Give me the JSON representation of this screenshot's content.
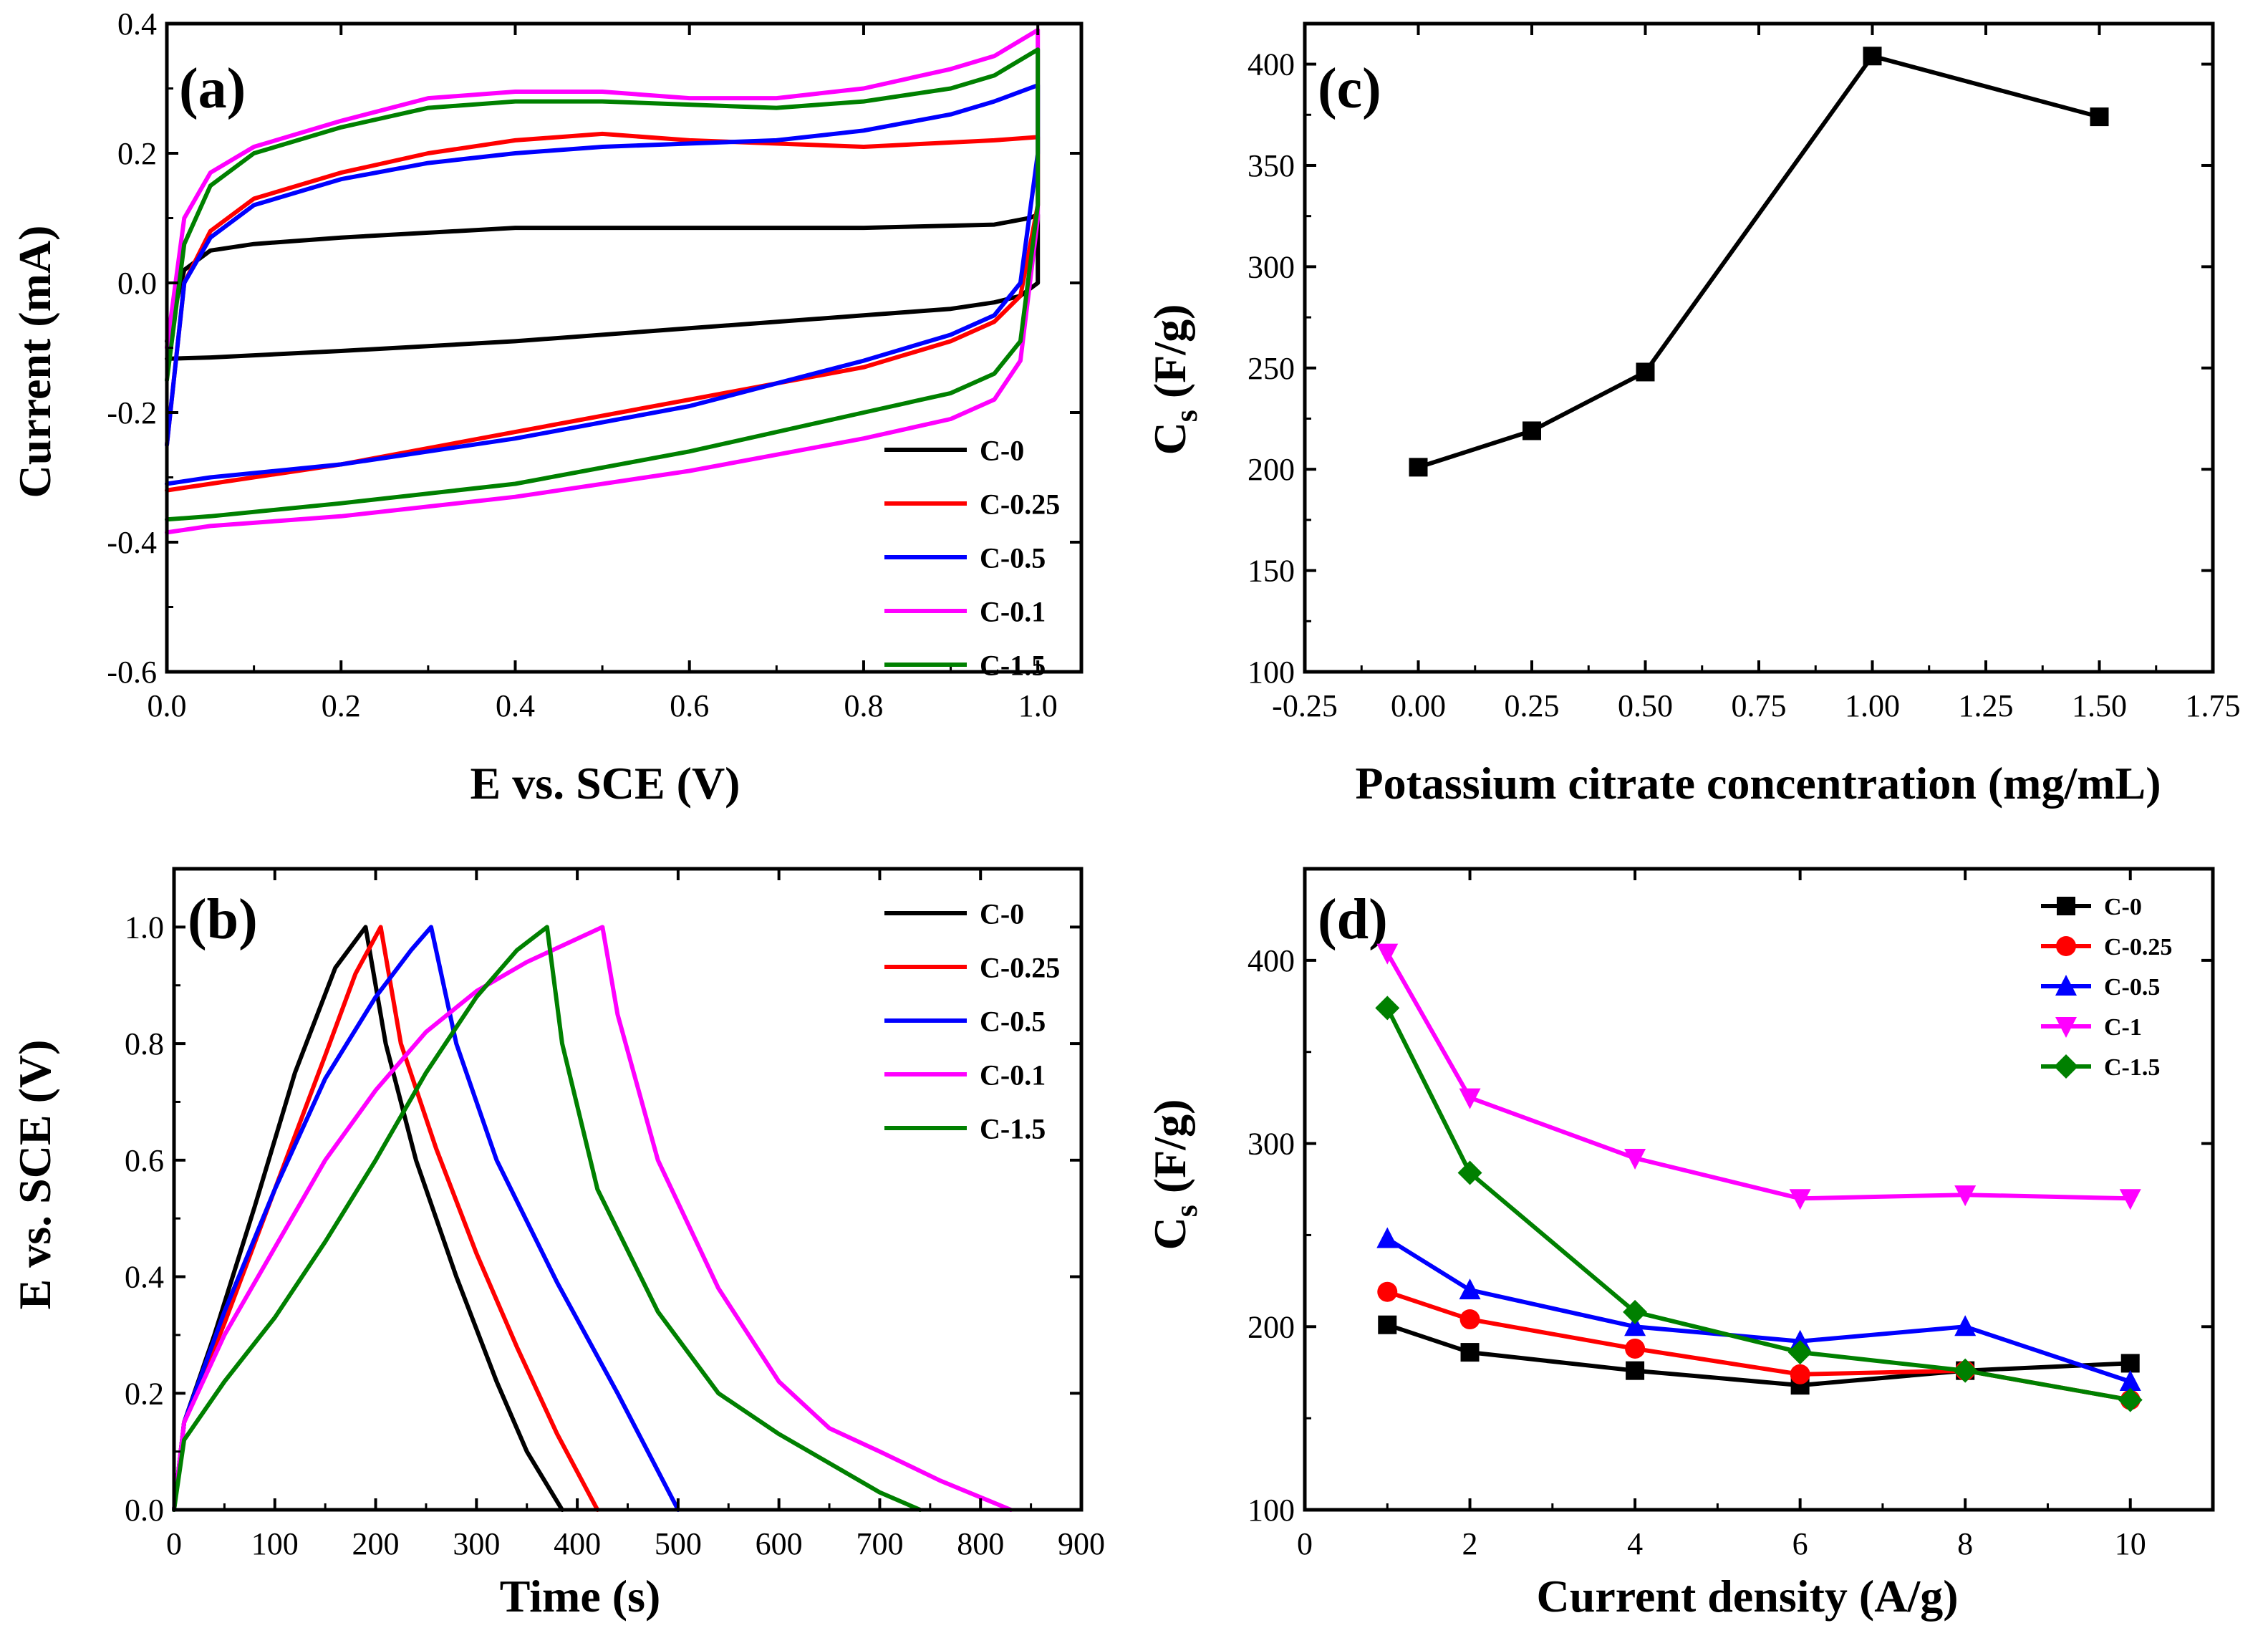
{
  "chart_data": [
    {
      "panel": "(a)",
      "type": "line",
      "title": "",
      "xlabel": "E vs. SCE (V)",
      "ylabel": "Current (mA)",
      "xlim": [
        0.0,
        1.05
      ],
      "ylim": [
        -0.6,
        0.4
      ],
      "xticks": [
        "0.0",
        "0.2",
        "0.4",
        "0.6",
        "0.8",
        "1.0"
      ],
      "yticks": [
        "-0.6",
        "-0.4",
        "-0.2",
        "0.0",
        "0.2",
        "0.4"
      ],
      "legend_position": "bottom-right",
      "series": [
        {
          "name": "C-0",
          "color": "#000000",
          "x": [
            0.0,
            0.02,
            0.05,
            0.1,
            0.2,
            0.4,
            0.6,
            0.8,
            0.95,
            0.99,
            1.0,
            1.0,
            0.98,
            0.95,
            0.9,
            0.8,
            0.6,
            0.4,
            0.2,
            0.05,
            0.0
          ],
          "y": [
            -0.09,
            0.02,
            0.05,
            0.06,
            0.07,
            0.085,
            0.085,
            0.085,
            0.09,
            0.1,
            0.105,
            0.0,
            -0.02,
            -0.03,
            -0.04,
            -0.05,
            -0.07,
            -0.09,
            -0.105,
            -0.115,
            -0.117
          ]
        },
        {
          "name": "C-0.25",
          "color": "#ff0000",
          "x": [
            0.0,
            0.02,
            0.05,
            0.1,
            0.2,
            0.3,
            0.4,
            0.5,
            0.6,
            0.8,
            0.95,
            1.0,
            1.0,
            0.98,
            0.95,
            0.9,
            0.8,
            0.6,
            0.4,
            0.2,
            0.05,
            0.0
          ],
          "y": [
            -0.25,
            0.0,
            0.08,
            0.13,
            0.17,
            0.2,
            0.22,
            0.23,
            0.22,
            0.21,
            0.22,
            0.225,
            0.12,
            -0.02,
            -0.06,
            -0.09,
            -0.13,
            -0.18,
            -0.23,
            -0.28,
            -0.31,
            -0.32
          ]
        },
        {
          "name": "C-0.5",
          "color": "#0000ff",
          "x": [
            0.0,
            0.02,
            0.05,
            0.1,
            0.2,
            0.3,
            0.4,
            0.5,
            0.6,
            0.7,
            0.8,
            0.9,
            0.95,
            1.0,
            1.0,
            0.98,
            0.95,
            0.9,
            0.8,
            0.6,
            0.4,
            0.2,
            0.05,
            0.0
          ],
          "y": [
            -0.25,
            0.0,
            0.07,
            0.12,
            0.16,
            0.185,
            0.2,
            0.21,
            0.215,
            0.22,
            0.235,
            0.26,
            0.28,
            0.305,
            0.2,
            0.0,
            -0.05,
            -0.08,
            -0.12,
            -0.19,
            -0.24,
            -0.28,
            -0.3,
            -0.31
          ]
        },
        {
          "name": "C-0.1",
          "color": "#ff00ff",
          "x": [
            0.0,
            0.02,
            0.05,
            0.1,
            0.2,
            0.3,
            0.4,
            0.5,
            0.6,
            0.7,
            0.8,
            0.9,
            0.95,
            1.0,
            1.0,
            0.98,
            0.95,
            0.9,
            0.8,
            0.6,
            0.4,
            0.2,
            0.05,
            0.0
          ],
          "y": [
            -0.1,
            0.1,
            0.17,
            0.21,
            0.25,
            0.285,
            0.295,
            0.295,
            0.285,
            0.285,
            0.3,
            0.33,
            0.35,
            0.39,
            0.1,
            -0.12,
            -0.18,
            -0.21,
            -0.24,
            -0.29,
            -0.33,
            -0.36,
            -0.375,
            -0.385
          ]
        },
        {
          "name": "C-1.5",
          "color": "#008000",
          "x": [
            0.0,
            0.02,
            0.05,
            0.1,
            0.2,
            0.3,
            0.4,
            0.5,
            0.6,
            0.7,
            0.8,
            0.9,
            0.95,
            1.0,
            1.0,
            0.98,
            0.95,
            0.9,
            0.8,
            0.6,
            0.4,
            0.2,
            0.05,
            0.0
          ],
          "y": [
            -0.15,
            0.06,
            0.15,
            0.2,
            0.24,
            0.27,
            0.28,
            0.28,
            0.275,
            0.27,
            0.28,
            0.3,
            0.32,
            0.36,
            0.12,
            -0.09,
            -0.14,
            -0.17,
            -0.2,
            -0.26,
            -0.31,
            -0.34,
            -0.36,
            -0.365
          ]
        }
      ]
    },
    {
      "panel": "(b)",
      "type": "line",
      "title": "",
      "xlabel": "Time (s)",
      "ylabel": "E vs. SCE (V)",
      "xlim": [
        0,
        900
      ],
      "ylim": [
        0.0,
        1.1
      ],
      "xticks": [
        "0",
        "100",
        "200",
        "300",
        "400",
        "500",
        "600",
        "700",
        "800",
        "900"
      ],
      "yticks": [
        "0.0",
        "0.2",
        "0.4",
        "0.6",
        "0.8",
        "1.0"
      ],
      "legend_position": "top-right",
      "series": [
        {
          "name": "C-0",
          "color": "#000000",
          "x": [
            0,
            10,
            40,
            80,
            120,
            160,
            190,
            210,
            240,
            280,
            320,
            350,
            385
          ],
          "y": [
            0.0,
            0.15,
            0.3,
            0.52,
            0.75,
            0.93,
            1.0,
            0.8,
            0.6,
            0.4,
            0.22,
            0.1,
            0.0
          ]
        },
        {
          "name": "C-0.25",
          "color": "#ff0000",
          "x": [
            0,
            10,
            50,
            100,
            150,
            180,
            205,
            225,
            260,
            300,
            340,
            380,
            420
          ],
          "y": [
            0.0,
            0.15,
            0.32,
            0.55,
            0.78,
            0.92,
            1.0,
            0.8,
            0.62,
            0.44,
            0.28,
            0.13,
            0.0
          ]
        },
        {
          "name": "C-0.5",
          "color": "#0000ff",
          "x": [
            0,
            10,
            50,
            100,
            150,
            200,
            235,
            255,
            280,
            320,
            380,
            440,
            500
          ],
          "y": [
            0.0,
            0.15,
            0.34,
            0.55,
            0.74,
            0.88,
            0.96,
            1.0,
            0.8,
            0.6,
            0.39,
            0.2,
            0.0
          ]
        },
        {
          "name": "C-0.1",
          "color": "#ff00ff",
          "x": [
            0,
            10,
            50,
            100,
            150,
            200,
            250,
            300,
            350,
            400,
            425,
            440,
            480,
            540,
            600,
            650,
            700,
            760,
            830
          ],
          "y": [
            0.0,
            0.15,
            0.3,
            0.45,
            0.6,
            0.72,
            0.82,
            0.89,
            0.94,
            0.98,
            1.0,
            0.85,
            0.6,
            0.38,
            0.22,
            0.14,
            0.1,
            0.05,
            0.0
          ]
        },
        {
          "name": "C-1.5",
          "color": "#008000",
          "x": [
            0,
            10,
            50,
            100,
            150,
            200,
            250,
            300,
            340,
            370,
            385,
            420,
            480,
            540,
            600,
            660,
            700,
            740
          ],
          "y": [
            0.0,
            0.12,
            0.22,
            0.33,
            0.46,
            0.6,
            0.75,
            0.88,
            0.96,
            1.0,
            0.8,
            0.55,
            0.34,
            0.2,
            0.13,
            0.07,
            0.03,
            0.0
          ]
        }
      ]
    },
    {
      "panel": "(c)",
      "type": "line",
      "title": "",
      "xlabel": "Potassium citrate concentration (mg/mL)",
      "ylabel_main": "C",
      "ylabel_sub": "s",
      "ylabel_rest": " (F/g)",
      "xlim": [
        -0.25,
        1.75
      ],
      "ylim": [
        100,
        420
      ],
      "xticks": [
        "-0.25",
        "0.00",
        "0.25",
        "0.50",
        "0.75",
        "1.00",
        "1.25",
        "1.50",
        "1.75"
      ],
      "yticks": [
        "100",
        "150",
        "200",
        "250",
        "300",
        "350",
        "400"
      ],
      "series": [
        {
          "name": "Cs",
          "color": "#000000",
          "marker": "square",
          "x": [
            0.0,
            0.25,
            0.5,
            1.0,
            1.5
          ],
          "y": [
            201,
            219,
            248,
            404,
            374
          ]
        }
      ]
    },
    {
      "panel": "(d)",
      "type": "line",
      "title": "",
      "xlabel": "Current density  (A/g)",
      "ylabel_main": "C",
      "ylabel_sub": "s",
      "ylabel_rest": " (F/g)",
      "xlim": [
        0,
        11
      ],
      "ylim": [
        100,
        450
      ],
      "xticks": [
        "0",
        "2",
        "4",
        "6",
        "8",
        "10"
      ],
      "yticks": [
        "100",
        "200",
        "300",
        "400"
      ],
      "legend_position": "top-right",
      "series": [
        {
          "name": "C-0",
          "color": "#000000",
          "marker": "square",
          "x": [
            1,
            2,
            4,
            6,
            8,
            10
          ],
          "y": [
            201,
            186,
            176,
            168,
            176,
            180
          ]
        },
        {
          "name": "C-0.25",
          "color": "#ff0000",
          "marker": "circle",
          "x": [
            1,
            2,
            4,
            6,
            8,
            10
          ],
          "y": [
            219,
            204,
            188,
            174,
            176,
            160
          ]
        },
        {
          "name": "C-0.5",
          "color": "#0000ff",
          "marker": "triangle-up",
          "x": [
            1,
            2,
            4,
            6,
            8,
            10
          ],
          "y": [
            248,
            220,
            200,
            192,
            200,
            170
          ]
        },
        {
          "name": "C-1",
          "color": "#ff00ff",
          "marker": "triangle-down",
          "x": [
            1,
            2,
            4,
            6,
            8,
            10
          ],
          "y": [
            404,
            325,
            292,
            270,
            272,
            270
          ]
        },
        {
          "name": "C-1.5",
          "color": "#008000",
          "marker": "diamond",
          "x": [
            1,
            2,
            4,
            6,
            8,
            10
          ],
          "y": [
            374,
            284,
            208,
            186,
            176,
            160
          ]
        }
      ]
    }
  ]
}
